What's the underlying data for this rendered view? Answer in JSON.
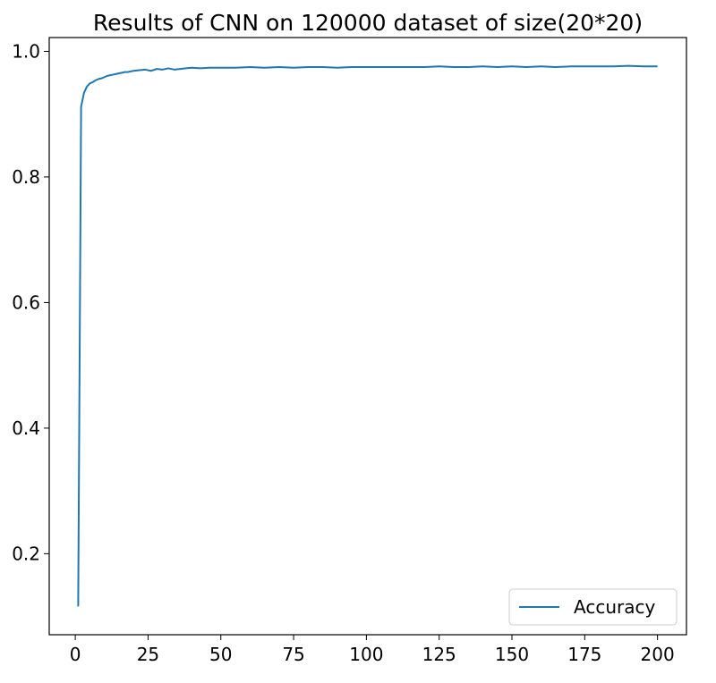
{
  "chart_data": {
    "type": "line",
    "title": "Results of CNN on 120000 dataset of size(20*20)",
    "xlabel": "",
    "ylabel": "",
    "xlim": [
      -8.95,
      209.95
    ],
    "ylim": [
      0.071,
      1.022
    ],
    "xticks": [
      0,
      25,
      50,
      75,
      100,
      125,
      150,
      175,
      200
    ],
    "yticks": [
      0.2,
      0.4,
      0.6,
      0.8,
      1.0
    ],
    "ytick_labels": [
      "0.2",
      "0.4",
      "0.6",
      "0.8",
      "1.0"
    ],
    "grid": false,
    "legend_position": "bottom-right",
    "series": [
      {
        "name": "Accuracy",
        "color": "#1f77b4",
        "x": [
          1,
          2,
          3,
          4,
          5,
          6,
          7,
          8,
          9,
          10,
          11,
          12,
          13,
          14,
          15,
          16,
          17,
          18,
          19,
          20,
          22,
          24,
          26,
          28,
          30,
          32,
          34,
          36,
          38,
          40,
          43,
          46,
          50,
          55,
          60,
          65,
          70,
          75,
          80,
          85,
          90,
          95,
          100,
          105,
          110,
          115,
          120,
          125,
          130,
          135,
          140,
          145,
          150,
          155,
          160,
          165,
          170,
          175,
          180,
          185,
          190,
          195,
          200
        ],
        "values": [
          0.116,
          0.912,
          0.934,
          0.944,
          0.949,
          0.951,
          0.954,
          0.956,
          0.957,
          0.959,
          0.961,
          0.962,
          0.963,
          0.964,
          0.965,
          0.966,
          0.967,
          0.967,
          0.968,
          0.969,
          0.97,
          0.971,
          0.969,
          0.972,
          0.971,
          0.973,
          0.971,
          0.972,
          0.973,
          0.974,
          0.973,
          0.974,
          0.974,
          0.974,
          0.975,
          0.974,
          0.975,
          0.974,
          0.975,
          0.975,
          0.974,
          0.975,
          0.975,
          0.975,
          0.975,
          0.975,
          0.975,
          0.976,
          0.975,
          0.975,
          0.976,
          0.975,
          0.976,
          0.975,
          0.976,
          0.975,
          0.976,
          0.976,
          0.976,
          0.976,
          0.977,
          0.976,
          0.976
        ]
      }
    ]
  }
}
